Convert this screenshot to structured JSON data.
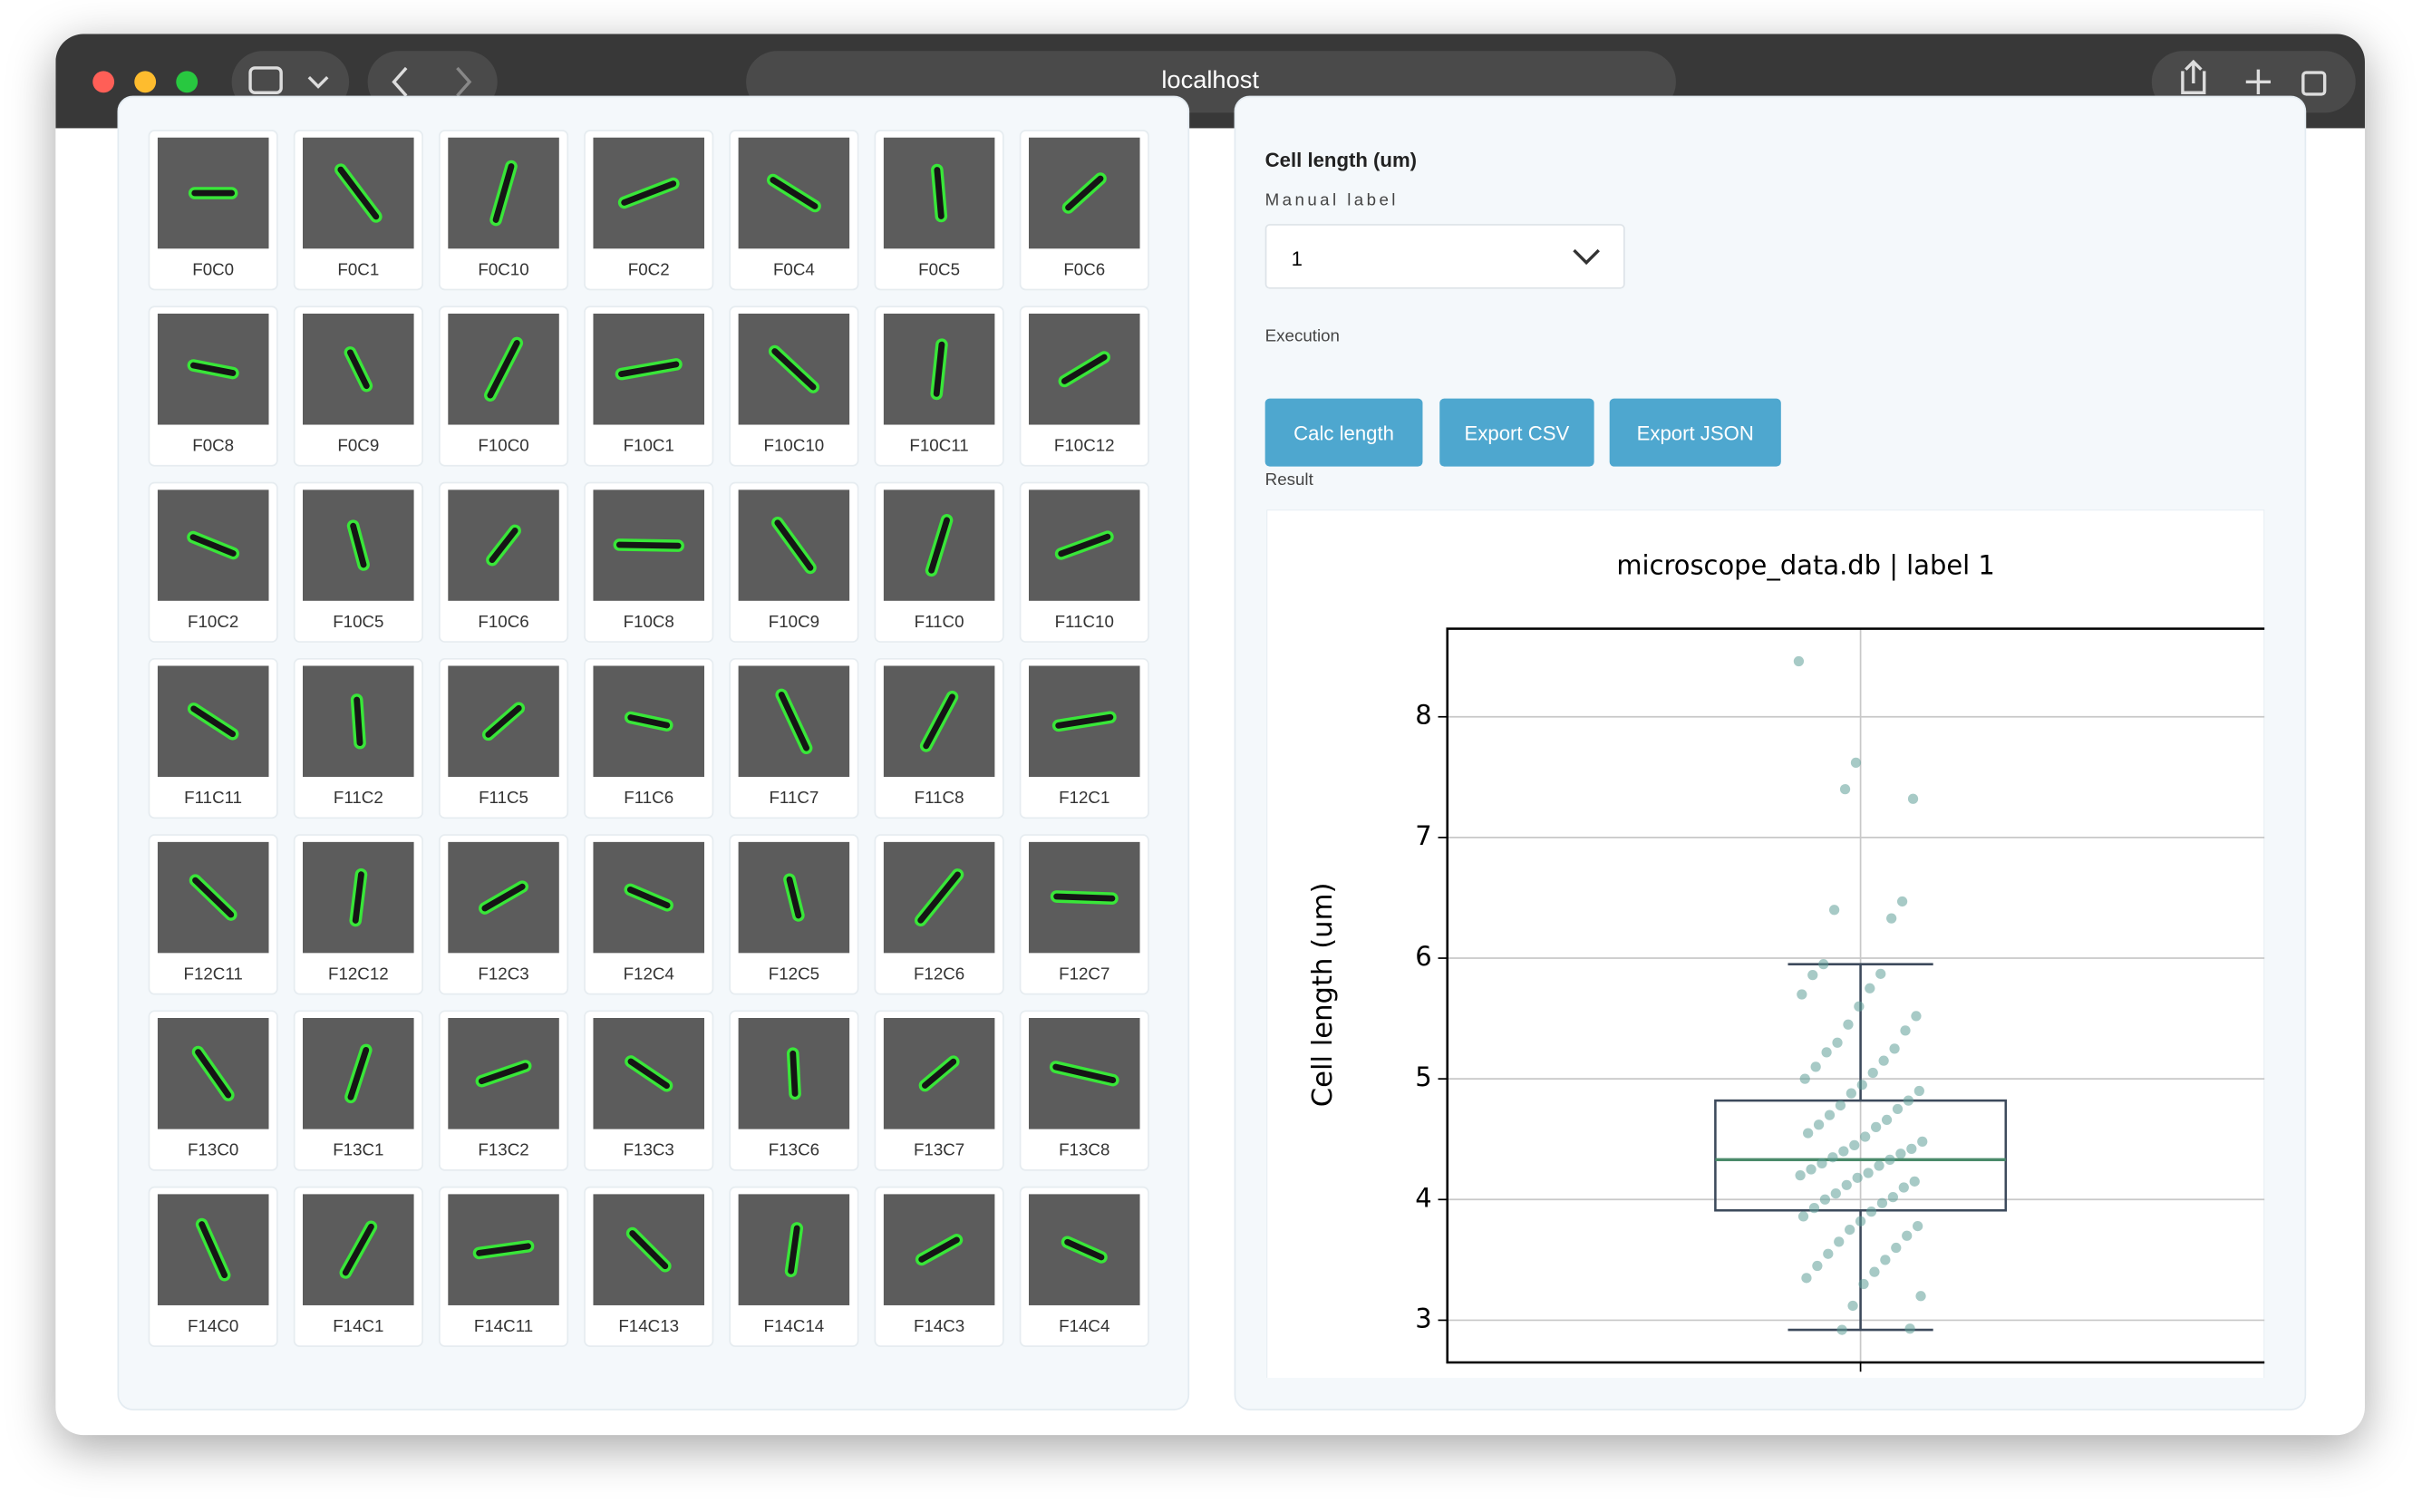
{
  "browser": {
    "url": "localhost"
  },
  "gallery": {
    "cells": [
      "F0C0",
      "F0C1",
      "F0C10",
      "F0C2",
      "F0C4",
      "F0C5",
      "F0C6",
      "F0C8",
      "F0C9",
      "F10C0",
      "F10C1",
      "F10C10",
      "F10C11",
      "F10C12",
      "F10C2",
      "F10C5",
      "F10C6",
      "F10C8",
      "F10C9",
      "F11C0",
      "F11C10",
      "F11C11",
      "F11C2",
      "F11C5",
      "F11C6",
      "F11C7",
      "F11C8",
      "F12C1",
      "F12C11",
      "F12C12",
      "F12C3",
      "F12C4",
      "F12C5",
      "F12C6",
      "F12C7",
      "F13C0",
      "F13C1",
      "F13C2",
      "F13C3",
      "F13C6",
      "F13C7",
      "F13C8",
      "F14C0",
      "F14C1",
      "F14C11",
      "F14C13",
      "F14C14",
      "F14C3",
      "F14C4"
    ]
  },
  "controls": {
    "heading": "Cell length (um)",
    "manual_label": "Manual label",
    "selected": "1",
    "execution": "Execution",
    "buttons": [
      "Calc length",
      "Export CSV",
      "Export JSON"
    ],
    "result": "Result"
  },
  "chart_data": {
    "type": "box",
    "title": "microscope_data.db | label 1",
    "ylabel": "Cell length (um)",
    "categories": [
      "1"
    ],
    "box": {
      "whislo": 2.92,
      "q1": 3.91,
      "med": 4.33,
      "q3": 4.82,
      "whishi": 5.95
    },
    "points": [
      8.46,
      7.62,
      7.32,
      7.4,
      6.47,
      6.4,
      6.33,
      5.95,
      5.87,
      5.86,
      5.75,
      5.7,
      5.6,
      5.52,
      5.45,
      5.4,
      5.3,
      5.25,
      5.22,
      5.15,
      5.1,
      5.05,
      5.0,
      4.95,
      4.9,
      4.88,
      4.82,
      4.78,
      4.75,
      4.7,
      4.66,
      4.62,
      4.6,
      4.55,
      4.52,
      4.48,
      4.45,
      4.42,
      4.4,
      4.38,
      4.35,
      4.33,
      4.3,
      4.28,
      4.25,
      4.22,
      4.2,
      4.18,
      4.15,
      4.12,
      4.1,
      4.05,
      4.02,
      4.0,
      3.97,
      3.93,
      3.9,
      3.86,
      3.82,
      3.78,
      3.75,
      3.7,
      3.65,
      3.6,
      3.55,
      3.5,
      3.45,
      3.4,
      3.35,
      3.3,
      3.2,
      3.12,
      2.93,
      2.92
    ],
    "ylim": [
      2.65,
      8.73
    ],
    "yticks": [
      3,
      4,
      5,
      6,
      7,
      8
    ],
    "grid": true,
    "box_color": "#3d4a5c",
    "median_color": "#4a8a6a",
    "point_color": "#5f9e98"
  }
}
